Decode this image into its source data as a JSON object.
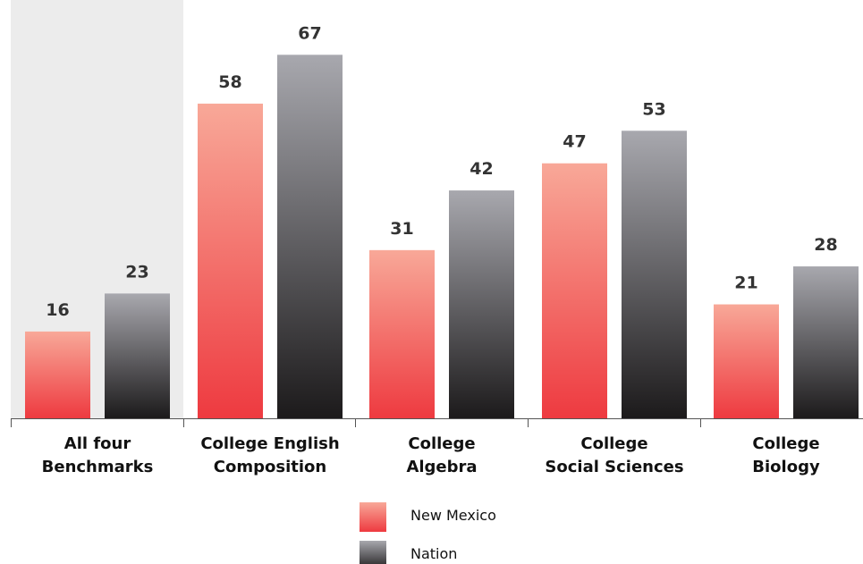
{
  "chart_data": {
    "type": "bar",
    "categories": [
      [
        "All four",
        "Benchmarks"
      ],
      [
        "College English",
        "Composition"
      ],
      [
        "College",
        "Algebra"
      ],
      [
        "College",
        "Social Sciences"
      ],
      [
        "College",
        "Biology"
      ]
    ],
    "series": [
      {
        "name": "New Mexico",
        "values": [
          16,
          58,
          31,
          47,
          21
        ]
      },
      {
        "name": "Nation",
        "values": [
          23,
          67,
          42,
          53,
          28
        ]
      }
    ],
    "ylim": [
      0,
      70
    ],
    "grid": false,
    "legend_position": "bottom-center",
    "highlighted_category": "All four Benchmarks",
    "colors": {
      "new_mexico_top": "#f8a898",
      "new_mexico_bottom": "#ee3a40",
      "nation_top": "#a8a8ae",
      "nation_bottom": "#1c1a1b",
      "highlight_band": "#ececec",
      "axis": "#555555"
    }
  }
}
